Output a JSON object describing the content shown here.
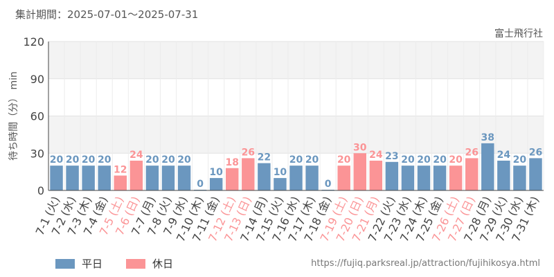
{
  "header": {
    "period": "集計期間：2025-07-01〜2025-07-31",
    "attraction": "富士飛行社"
  },
  "legend": {
    "weekday": "平日",
    "holiday": "休日"
  },
  "source": "https://fujiq.parksreal.jp/attraction/fujihikosya.html",
  "colors": {
    "weekday": "#6b97bf",
    "holiday": "#fb9496",
    "grid_band": "#f3f3f3",
    "grid_line": "#e2e2e2"
  },
  "chart_data": {
    "type": "bar",
    "ylabel": "待ち時間（分） min",
    "ylim": [
      0,
      120
    ],
    "yticks": [
      0,
      30,
      60,
      90,
      120
    ],
    "categories": [
      "7-1 (火)",
      "7-2 (水)",
      "7-3 (木)",
      "7-4 (金)",
      "7-5 (土)",
      "7-6 (日)",
      "7-7 (月)",
      "7-8 (火)",
      "7-9 (水)",
      "7-10 (木)",
      "7-11 (金)",
      "7-12 (土)",
      "7-13 (日)",
      "7-14 (月)",
      "7-15 (火)",
      "7-16 (水)",
      "7-17 (木)",
      "7-18 (金)",
      "7-19 (土)",
      "7-20 (日)",
      "7-21 (月)",
      "7-22 (火)",
      "7-23 (水)",
      "7-24 (木)",
      "7-25 (金)",
      "7-26 (土)",
      "7-27 (日)",
      "7-28 (月)",
      "7-29 (火)",
      "7-30 (水)",
      "7-31 (木)"
    ],
    "values": [
      20,
      20,
      20,
      20,
      12,
      24,
      20,
      20,
      20,
      0,
      10,
      18,
      26,
      22,
      10,
      20,
      20,
      0,
      20,
      30,
      24,
      23,
      20,
      20,
      20,
      20,
      26,
      38,
      24,
      20,
      26
    ],
    "holiday": [
      false,
      false,
      false,
      false,
      true,
      true,
      false,
      false,
      false,
      false,
      false,
      true,
      true,
      false,
      false,
      false,
      false,
      false,
      true,
      true,
      true,
      false,
      false,
      false,
      false,
      true,
      true,
      false,
      false,
      false,
      false
    ]
  }
}
